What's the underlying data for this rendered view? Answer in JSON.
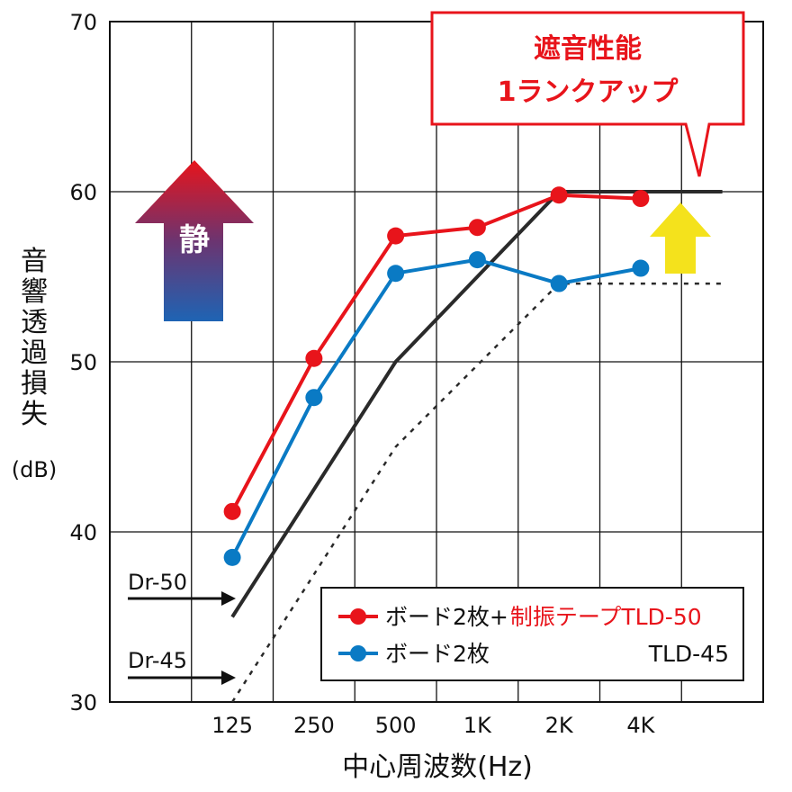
{
  "chart_data": {
    "type": "line",
    "categories": [
      "125",
      "250",
      "500",
      "1K",
      "2K",
      "4K"
    ],
    "ylim": [
      30,
      70
    ],
    "yticks": [
      30,
      40,
      50,
      60,
      70
    ],
    "grid": true,
    "xlabel": "中心周波数(Hz)",
    "ylabel_chars": [
      "音",
      "響",
      "透",
      "過",
      "損",
      "失"
    ],
    "ylabel_unit": "(dB)",
    "series": [
      {
        "name_prefix": "ボード2枚+",
        "name_highlight": "制振テープTLD-50",
        "color": "#e8141b",
        "values": [
          41.2,
          50.2,
          57.4,
          57.9,
          59.8,
          59.6
        ]
      },
      {
        "name_prefix": "ボード2枚",
        "name_highlight": "",
        "suffix": "TLD-45",
        "color": "#0a7ac4",
        "values": [
          38.5,
          47.9,
          55.2,
          56.0,
          54.6,
          55.5
        ]
      }
    ],
    "reference_curves": [
      {
        "label": "Dr-50",
        "style": "solid",
        "color": "#2a2a2a",
        "points": [
          [
            125,
            35
          ],
          [
            500,
            50
          ],
          [
            2000,
            60
          ],
          [
            8000,
            60
          ]
        ]
      },
      {
        "label": "Dr-45",
        "style": "dashed",
        "color": "#2a2a2a",
        "points": [
          [
            125,
            30
          ],
          [
            500,
            45
          ],
          [
            2000,
            54.6
          ],
          [
            8000,
            54.6
          ]
        ]
      }
    ],
    "annotations": {
      "callout_lines": [
        "遮音性能",
        "1ランクアップ"
      ],
      "arrow_label": "静"
    }
  }
}
